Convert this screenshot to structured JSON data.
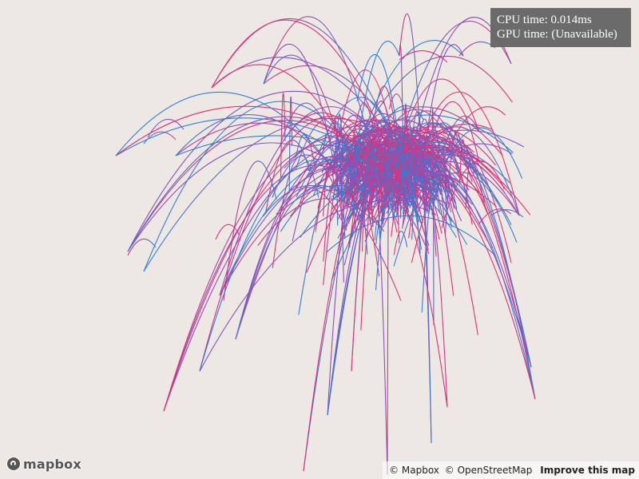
{
  "perf": {
    "cpu": "CPU time: 0.014ms",
    "gpu": "GPU time: (Unavailable)"
  },
  "logo": {
    "text": "mapbox",
    "icon": "mapbox-logo-icon"
  },
  "attribution": {
    "mapbox": "© Mapbox",
    "osm": "© OpenStreetMap",
    "improve": "Improve this map"
  },
  "colors": {
    "background": "#ede8e3",
    "arc_blue": "#2f7fd6",
    "arc_pink": "#e0307a",
    "arc_purple": "#8a4fc0"
  }
}
